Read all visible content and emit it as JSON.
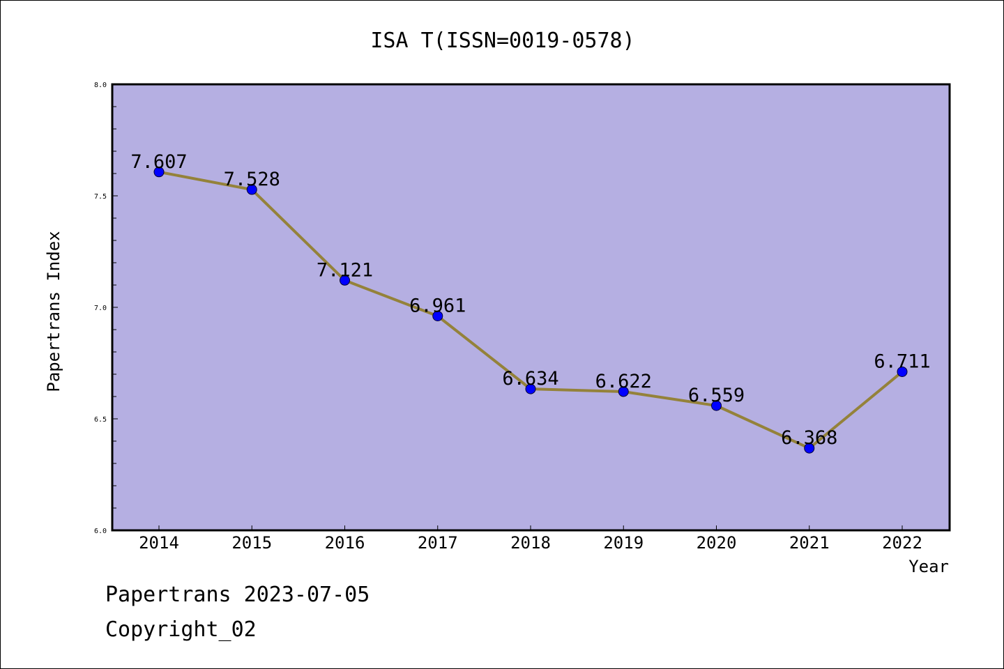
{
  "chart_data": {
    "type": "line",
    "title": "ISA T(ISSN=0019-0578)",
    "xlabel": "Year",
    "ylabel": "Papertrans Index",
    "x": [
      "2014",
      "2015",
      "2016",
      "2017",
      "2018",
      "2019",
      "2020",
      "2021",
      "2022"
    ],
    "values": [
      7.607,
      7.528,
      7.121,
      6.961,
      6.634,
      6.622,
      6.559,
      6.368,
      6.711
    ],
    "data_labels": [
      "7.607",
      "7.528",
      "7.121",
      "6.961",
      "6.634",
      "6.622",
      "6.559",
      "6.368",
      "6.711"
    ],
    "ylim": [
      6.0,
      8.0
    ],
    "y_ticks": [
      "6.0",
      "6.5",
      "7.0",
      "7.5",
      "8.0"
    ],
    "grid": false,
    "colors": {
      "plot_background": "#b5afe2",
      "line": "#94823a",
      "marker": "#0000ff"
    }
  },
  "footer": {
    "line1": "Papertrans 2023-07-05",
    "line2": "Copyright_02"
  }
}
